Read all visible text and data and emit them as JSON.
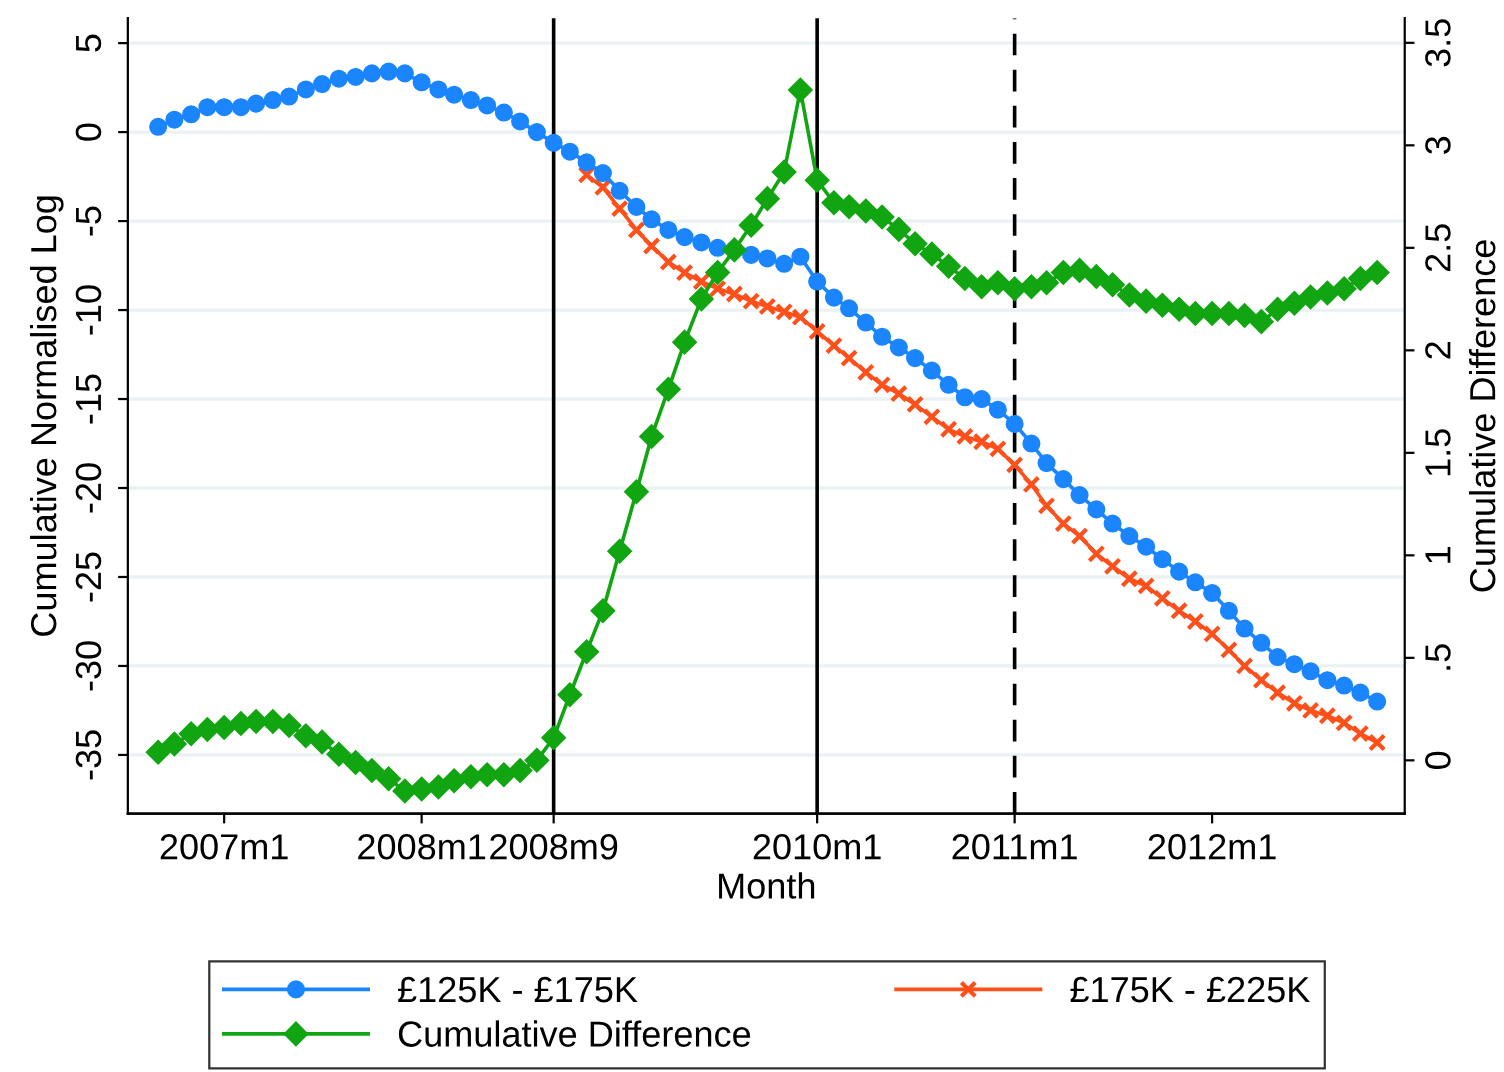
{
  "chart_data": {
    "type": "line",
    "xlabel": "Month",
    "ylabel": "Cumulative Normalised Log",
    "y2label": "Cumulative Difference",
    "x": [
      "2006-09",
      "2006-10",
      "2006-11",
      "2006-12",
      "2007-01",
      "2007-02",
      "2007-03",
      "2007-04",
      "2007-05",
      "2007-06",
      "2007-07",
      "2007-08",
      "2007-09",
      "2007-10",
      "2007-11",
      "2007-12",
      "2008-01",
      "2008-02",
      "2008-03",
      "2008-04",
      "2008-05",
      "2008-06",
      "2008-07",
      "2008-08",
      "2008-09",
      "2008-10",
      "2008-11",
      "2008-12",
      "2009-01",
      "2009-02",
      "2009-03",
      "2009-04",
      "2009-05",
      "2009-06",
      "2009-07",
      "2009-08",
      "2009-09",
      "2009-10",
      "2009-11",
      "2009-12",
      "2010-01",
      "2010-02",
      "2010-03",
      "2010-04",
      "2010-05",
      "2010-06",
      "2010-07",
      "2010-08",
      "2010-09",
      "2010-10",
      "2010-11",
      "2010-12",
      "2011-01",
      "2011-02",
      "2011-03",
      "2011-04",
      "2011-05",
      "2011-06",
      "2011-07",
      "2011-08",
      "2011-09",
      "2011-10",
      "2011-11",
      "2011-12",
      "2012-01",
      "2012-02",
      "2012-03",
      "2012-04",
      "2012-05",
      "2012-06",
      "2012-07",
      "2012-08",
      "2012-09",
      "2012-10",
      "2012-11"
    ],
    "series": [
      {
        "name": "£125K - £175K",
        "color": "#1a85ff",
        "marker": "circle",
        "values": [
          0.3,
          0.7,
          1.0,
          1.4,
          1.4,
          1.4,
          1.6,
          1.8,
          2.0,
          2.4,
          2.7,
          3.0,
          3.1,
          3.3,
          3.4,
          3.3,
          2.8,
          2.4,
          2.1,
          1.8,
          1.5,
          1.1,
          0.6,
          0.0,
          -0.6,
          -1.1,
          -1.7,
          -2.3,
          -3.3,
          -4.2,
          -4.9,
          -5.5,
          -5.9,
          -6.2,
          -6.5,
          -6.6,
          -6.9,
          -7.1,
          -7.4,
          -7.0,
          -8.4,
          -9.3,
          -9.9,
          -10.7,
          -11.5,
          -12.1,
          -12.7,
          -13.4,
          -14.2,
          -14.9,
          -15.0,
          -15.6,
          -16.4,
          -17.5,
          -18.6,
          -19.5,
          -20.4,
          -21.2,
          -22.0,
          -22.7,
          -23.3,
          -24.0,
          -24.7,
          -25.3,
          -25.9,
          -26.9,
          -27.9,
          -28.7,
          -29.5,
          -29.9,
          -30.3,
          -30.8,
          -31.1,
          -31.5,
          -32.0
        ]
      },
      {
        "name": "£175K - £225K",
        "color": "#ff4f1a",
        "marker": "cross",
        "values": [
          null,
          null,
          null,
          null,
          null,
          null,
          null,
          null,
          null,
          null,
          null,
          null,
          null,
          null,
          null,
          null,
          null,
          null,
          null,
          null,
          null,
          null,
          null,
          null,
          null,
          null,
          -2.4,
          -3.1,
          -4.3,
          -5.5,
          -6.4,
          -7.3,
          -7.9,
          -8.4,
          -8.8,
          -9.1,
          -9.5,
          -9.8,
          -10.1,
          -10.4,
          -11.2,
          -12.0,
          -12.7,
          -13.5,
          -14.2,
          -14.7,
          -15.3,
          -16.0,
          -16.7,
          -17.1,
          -17.4,
          -17.8,
          -18.7,
          -19.8,
          -21.0,
          -22.0,
          -22.7,
          -23.7,
          -24.4,
          -25.1,
          -25.5,
          -26.2,
          -26.9,
          -27.5,
          -28.2,
          -29.1,
          -30.0,
          -30.8,
          -31.5,
          -32.1,
          -32.5,
          -32.8,
          -33.2,
          -33.8,
          -34.3
        ]
      },
      {
        "name": "Cumulative Difference",
        "color": "#12a512",
        "marker": "diamond",
        "axis": "y2",
        "values": [
          0.04,
          0.08,
          0.13,
          0.15,
          0.16,
          0.18,
          0.19,
          0.19,
          0.17,
          0.12,
          0.09,
          0.03,
          -0.01,
          -0.05,
          -0.09,
          -0.15,
          -0.14,
          -0.13,
          -0.1,
          -0.08,
          -0.07,
          -0.07,
          -0.05,
          0.0,
          0.11,
          0.32,
          0.53,
          0.73,
          1.02,
          1.31,
          1.58,
          1.81,
          2.04,
          2.25,
          2.38,
          2.49,
          2.61,
          2.74,
          2.87,
          3.27,
          2.83,
          2.72,
          2.7,
          2.68,
          2.65,
          2.59,
          2.52,
          2.47,
          2.41,
          2.35,
          2.31,
          2.33,
          2.3,
          2.31,
          2.33,
          2.38,
          2.39,
          2.36,
          2.32,
          2.27,
          2.24,
          2.22,
          2.2,
          2.18,
          2.18,
          2.18,
          2.17,
          2.14,
          2.2,
          2.23,
          2.26,
          2.28,
          2.3,
          2.35,
          2.38
        ]
      }
    ],
    "xlim": [
      "2006-07-07",
      "2012-12-22"
    ],
    "xticks": [
      {
        "value": "2007-01",
        "label": "2007m1"
      },
      {
        "value": "2008-01",
        "label": "2008m1"
      },
      {
        "value": "2008-09",
        "label": "2008m9"
      },
      {
        "value": "2010-01",
        "label": "2010m1"
      },
      {
        "value": "2011-01",
        "label": "2011m1"
      },
      {
        "value": "2012-01",
        "label": "2012m1"
      }
    ],
    "ylim": [
      -38.3,
      6.4
    ],
    "yticks": [
      -35,
      -30,
      -25,
      -20,
      -15,
      -10,
      -5,
      0,
      5
    ],
    "y2lim": [
      -0.26,
      3.62
    ],
    "y2ticks": [
      0,
      {
        "value": 0.5,
        "label": ".5"
      },
      1,
      1.5,
      2,
      2.5,
      3,
      3.5
    ],
    "ref_lines": [
      {
        "axis": "x",
        "value": "2008-09",
        "color": "#000000",
        "line_style": "solid"
      },
      {
        "axis": "x",
        "value": "2010-01",
        "color": "#000000",
        "line_style": "solid"
      },
      {
        "axis": "x",
        "value": "2011-01",
        "color": "#000000",
        "line_style": "dashed"
      }
    ],
    "grid": "y",
    "legend": "bottom"
  }
}
